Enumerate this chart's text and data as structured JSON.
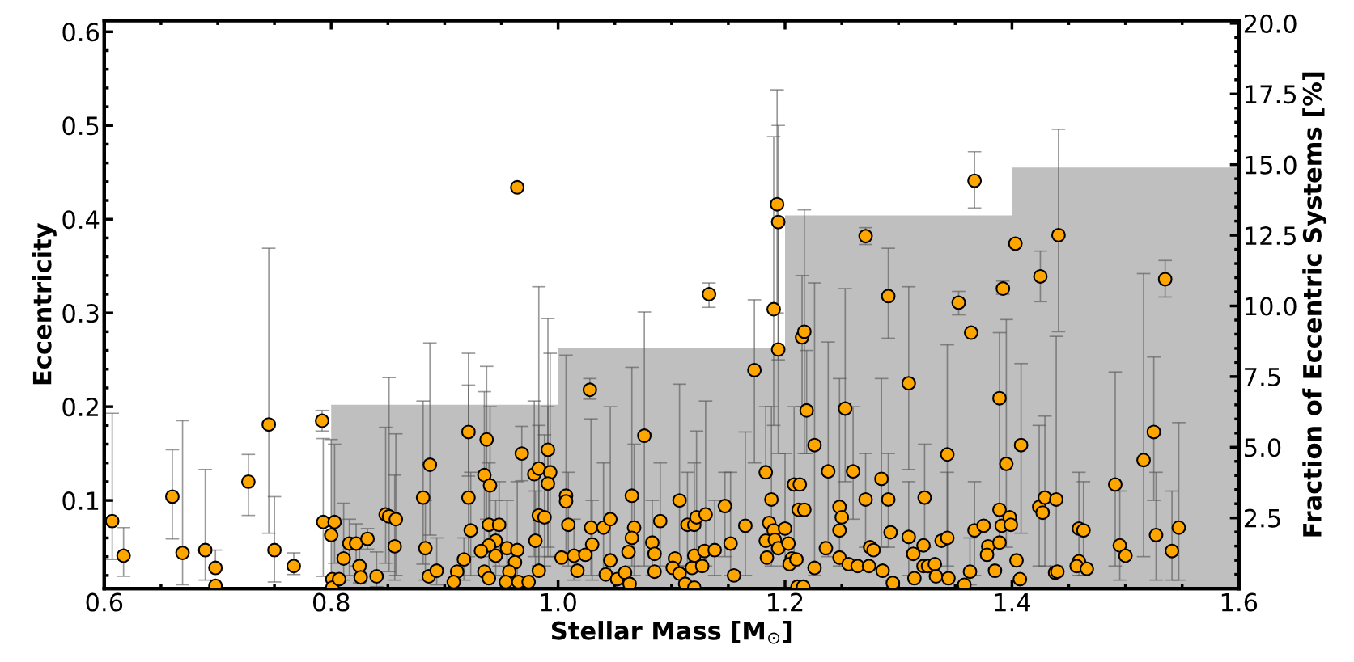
{
  "chart_data": {
    "type": "scatter",
    "xlabel": "Stellar Mass [M$_{⊙}$]",
    "ylabel": "Eccentricity",
    "y2label": "Fraction of Eccentric Systems [%]",
    "xlim": [
      0.6,
      1.6
    ],
    "xticks": [
      0.6,
      0.8,
      {
        "value": 1,
        "label": "1.0"
      },
      1.2,
      1.4,
      1.6
    ],
    "ylim": [
      0.006,
      0.612
    ],
    "yticks": [
      0.1,
      0.2,
      0.3,
      0.4,
      0.5,
      0.6
    ],
    "y2lim": [
      0,
      20.1
    ],
    "y2ticks": [
      2.5,
      {
        "value": 5,
        "label": "5.0"
      },
      7.5,
      {
        "value": 10,
        "label": "10.0"
      },
      12.5,
      {
        "value": 15,
        "label": "15.0"
      },
      17.5,
      {
        "value": 20,
        "label": "20.0"
      }
    ],
    "marker": "circle",
    "series": [
      {
        "type": "histogram",
        "axis": "y2",
        "color": "#bfbfbf",
        "bins": [
          0.6,
          0.8,
          1.0,
          1.2,
          1.4,
          1.6
        ],
        "values": [
          0,
          6.5,
          8.5,
          13.2,
          14.9
        ]
      },
      {
        "color": "#ffa500",
        "x": [
          0.607,
          0.617,
          0.66,
          0.669,
          0.689,
          0.698,
          0.698,
          0.727,
          0.745,
          0.75,
          0.767,
          0.792,
          0.793,
          0.803,
          0.8,
          0.801,
          0.801,
          0.807,
          0.811,
          0.816,
          0.822,
          0.825,
          0.826,
          0.832,
          0.84,
          0.848,
          0.851,
          0.857,
          0.856,
          0.881,
          0.887,
          0.883,
          0.886,
          0.893,
          0.964,
          0.921,
          0.921,
          0.923,
          0.937,
          0.935,
          0.94,
          0.939,
          0.948,
          0.945,
          0.939,
          0.932,
          0.945,
          0.935,
          0.939,
          0.917,
          0.911,
          0.908,
          0.968,
          0.955,
          0.964,
          0.962,
          0.957,
          0.954,
          0.965,
          0.974,
          0.979,
          0.983,
          0.991,
          0.993,
          0.991,
          0.983,
          0.988,
          0.98,
          0.983,
          1.007,
          1.007,
          1.009,
          1.003,
          1.014,
          1.017,
          1.028,
          1.029,
          1.03,
          1.024,
          1.04,
          1.046,
          1.046,
          1.042,
          1.052,
          1.059,
          1.063,
          1.065,
          1.067,
          1.065,
          1.062,
          1.076,
          1.083,
          1.085,
          1.085,
          1.09,
          1.103,
          1.101,
          1.107,
          1.107,
          1.112,
          1.114,
          1.12,
          1.122,
          1.12,
          1.118,
          1.12,
          1.13,
          1.129,
          1.127,
          1.138,
          1.133,
          1.147,
          1.152,
          1.155,
          1.165,
          1.173,
          1.183,
          1.188,
          1.186,
          1.183,
          1.184,
          1.19,
          1.191,
          1.194,
          1.2,
          1.203,
          1.19,
          1.193,
          1.194,
          1.194,
          1.206,
          1.204,
          1.208,
          1.212,
          1.211,
          1.215,
          1.217,
          1.219,
          1.226,
          1.213,
          1.217,
          1.21,
          1.226,
          1.216,
          1.238,
          1.236,
          1.248,
          1.25,
          1.248,
          1.248,
          1.253,
          1.256,
          1.26,
          1.264,
          1.271,
          1.271,
          1.275,
          1.278,
          1.274,
          1.285,
          1.286,
          1.291,
          1.291,
          1.293,
          1.295,
          1.309,
          1.309,
          1.313,
          1.314,
          1.322,
          1.323,
          1.322,
          1.326,
          1.332,
          1.333,
          1.338,
          1.343,
          1.343,
          1.344,
          1.353,
          1.364,
          1.358,
          1.363,
          1.367,
          1.367,
          1.375,
          1.379,
          1.378,
          1.385,
          1.389,
          1.389,
          1.389,
          1.392,
          1.395,
          1.391,
          1.398,
          1.399,
          1.403,
          1.408,
          1.404,
          1.407,
          1.425,
          1.424,
          1.427,
          1.429,
          1.439,
          1.441,
          1.438,
          1.44,
          1.459,
          1.463,
          1.459,
          1.457,
          1.466,
          1.491,
          1.495,
          1.5,
          1.516,
          1.525,
          1.527,
          1.535,
          1.541,
          1.547
        ],
        "values": [
          0.078,
          0.041,
          0.104,
          0.044,
          0.047,
          0.028,
          0.009,
          0.12,
          0.181,
          0.047,
          0.03,
          0.185,
          0.077,
          0.077,
          0.063,
          0.016,
          0.007,
          0.016,
          0.038,
          0.054,
          0.054,
          0.03,
          0.018,
          0.059,
          0.019,
          0.085,
          0.083,
          0.08,
          0.051,
          0.103,
          0.138,
          0.049,
          0.019,
          0.025,
          0.434,
          0.173,
          0.103,
          0.068,
          0.165,
          0.127,
          0.116,
          0.074,
          0.074,
          0.057,
          0.052,
          0.046,
          0.041,
          0.024,
          0.017,
          0.037,
          0.024,
          0.013,
          0.15,
          0.049,
          0.047,
          0.034,
          0.024,
          0.013,
          0.013,
          0.013,
          0.128,
          0.134,
          0.154,
          0.13,
          0.118,
          0.084,
          0.082,
          0.057,
          0.025,
          0.105,
          0.099,
          0.074,
          0.039,
          0.041,
          0.025,
          0.218,
          0.071,
          0.053,
          0.042,
          0.071,
          0.08,
          0.036,
          0.021,
          0.016,
          0.023,
          0.011,
          0.105,
          0.071,
          0.06,
          0.045,
          0.169,
          0.055,
          0.043,
          0.024,
          0.078,
          0.038,
          0.028,
          0.1,
          0.022,
          0.011,
          0.074,
          0.074,
          0.082,
          0.041,
          0.028,
          0.007,
          0.085,
          0.046,
          0.03,
          0.047,
          0.32,
          0.094,
          0.054,
          0.02,
          0.073,
          0.239,
          0.13,
          0.101,
          0.076,
          0.057,
          0.039,
          0.068,
          0.058,
          0.049,
          0.07,
          0.054,
          0.304,
          0.416,
          0.397,
          0.261,
          0.038,
          0.032,
          0.117,
          0.09,
          0.008,
          0.274,
          0.28,
          0.196,
          0.159,
          0.117,
          0.09,
          0.037,
          0.028,
          0.008,
          0.131,
          0.049,
          0.093,
          0.082,
          0.068,
          0.039,
          0.198,
          0.032,
          0.131,
          0.03,
          0.382,
          0.101,
          0.05,
          0.047,
          0.03,
          0.123,
          0.025,
          0.318,
          0.101,
          0.066,
          0.012,
          0.225,
          0.061,
          0.043,
          0.017,
          0.052,
          0.103,
          0.03,
          0.03,
          0.032,
          0.019,
          0.057,
          0.06,
          0.149,
          0.017,
          0.311,
          0.279,
          0.01,
          0.024,
          0.068,
          0.441,
          0.073,
          0.051,
          0.042,
          0.025,
          0.055,
          0.09,
          0.209,
          0.326,
          0.139,
          0.073,
          0.082,
          0.074,
          0.374,
          0.159,
          0.036,
          0.016,
          0.339,
          0.093,
          0.087,
          0.103,
          0.101,
          0.383,
          0.023,
          0.024,
          0.07,
          0.068,
          0.035,
          0.03,
          0.027,
          0.117,
          0.052,
          0.041,
          0.143,
          0.173,
          0.063,
          0.336,
          0.046,
          0.071
        ],
        "errors": [
          [
            0.037,
            0.193
          ],
          [
            0.019,
            0.071
          ],
          [
            0.059,
            0.154
          ],
          [
            0.01,
            0.185
          ],
          [
            0.015,
            0.133
          ],
          [
            0.028,
            0.047
          ],
          null,
          [
            0.084,
            0.149
          ],
          [
            0.065,
            0.369
          ],
          [
            0.013,
            0.104
          ],
          [
            0.021,
            0.044
          ],
          [
            0.174,
            0.196
          ],
          [
            0.019,
            0.166
          ],
          [
            0.033,
            0.16
          ],
          [
            0.015,
            0.165
          ],
          null,
          null,
          null,
          [
            0.015,
            0.097
          ],
          [
            0.02,
            0.08
          ],
          [
            0.03,
            0.075
          ],
          [
            0.012,
            0.06
          ],
          null,
          [
            0.048,
            0.07
          ],
          [
            0.008,
            0.045
          ],
          [
            0.033,
            0.178
          ],
          [
            0.024,
            0.231
          ],
          [
            0.02,
            0.171
          ],
          [
            0.015,
            0.127
          ],
          [
            0.032,
            0.206
          ],
          [
            0.063,
            0.268
          ],
          [
            0.015,
            0.1
          ],
          null,
          [
            0.01,
            0.06
          ],
          null,
          [
            0.126,
            0.257
          ],
          [
            0.04,
            0.223
          ],
          [
            0.02,
            0.13
          ],
          [
            0.08,
            0.243
          ],
          [
            0.05,
            0.216
          ],
          [
            0.04,
            0.2
          ],
          [
            0.02,
            0.14
          ],
          [
            0.03,
            0.12
          ],
          [
            0.02,
            0.1
          ],
          null,
          null,
          null,
          null,
          null,
          [
            0.015,
            0.06
          ],
          null,
          null,
          [
            0.121,
            0.179
          ],
          [
            0.015,
            0.1
          ],
          [
            0.015,
            0.12
          ],
          null,
          null,
          null,
          null,
          null,
          [
            0.04,
            0.206
          ],
          [
            0.03,
            0.328
          ],
          [
            0.05,
            0.294
          ],
          [
            0.04,
            0.257
          ],
          [
            0.04,
            0.2
          ],
          [
            0.03,
            0.18
          ],
          [
            0.03,
            0.17
          ],
          [
            0.02,
            0.11
          ],
          null,
          [
            0.04,
            0.255
          ],
          null,
          [
            0.03,
            0.13
          ],
          null,
          [
            0.015,
            0.08
          ],
          null,
          [
            0.208,
            0.23
          ],
          [
            0.02,
            0.187
          ],
          [
            0.015,
            0.1
          ],
          null,
          [
            0.02,
            0.14
          ],
          [
            0.02,
            0.2
          ],
          null,
          null,
          null,
          null,
          null,
          [
            0.03,
            0.242
          ],
          [
            0.02,
            0.16
          ],
          null,
          null,
          [
            0.03,
            0.301
          ],
          [
            0.02,
            0.1
          ],
          null,
          null,
          [
            0.03,
            0.14
          ],
          null,
          null,
          [
            0.03,
            0.224
          ],
          null,
          null,
          [
            0.03,
            0.13
          ],
          [
            0.03,
            0.14
          ],
          [
            0.03,
            0.174
          ],
          null,
          null,
          null,
          [
            0.03,
            0.206
          ],
          null,
          null,
          [
            0.02,
            0.1
          ],
          [
            0.306,
            0.332
          ],
          [
            0.04,
            0.13
          ],
          [
            0.02,
            0.13
          ],
          null,
          [
            0.02,
            0.173
          ],
          [
            0.14,
            0.314
          ],
          [
            0.13,
            0.2
          ],
          [
            0.03,
            0.2
          ],
          null,
          null,
          null,
          null,
          null,
          null,
          [
            0.03,
            0.15
          ],
          null,
          [
            0.18,
            0.488
          ],
          [
            0.3,
            0.538
          ],
          [
            0.25,
            0.5
          ],
          [
            0.15,
            0.4
          ],
          null,
          null,
          [
            0.04,
            0.2
          ],
          null,
          null,
          [
            0.2,
            0.34
          ],
          [
            0.15,
            0.41
          ],
          [
            0.15,
            0.26
          ],
          [
            0.02,
            0.332
          ],
          null,
          null,
          null,
          null,
          null,
          [
            0.04,
            0.269
          ],
          null,
          [
            0.03,
            0.23
          ],
          null,
          null,
          null,
          [
            0.12,
            0.326
          ],
          null,
          [
            0.08,
            0.2
          ],
          null,
          [
            0.373,
            0.391
          ],
          [
            0.05,
            0.15
          ],
          null,
          null,
          null,
          [
            0.05,
            0.23
          ],
          null,
          [
            0.273,
            0.369
          ],
          [
            0.05,
            0.15
          ],
          null,
          null,
          [
            0.133,
            0.328
          ],
          [
            0.02,
            0.12
          ],
          null,
          null,
          null,
          [
            0.05,
            0.16
          ],
          null,
          null,
          null,
          null,
          null,
          [
            0.02,
            0.13
          ],
          [
            0.03,
            0.266
          ],
          null,
          [
            0.298,
            0.323
          ],
          null,
          null,
          [
            0.01,
            0.06
          ],
          [
            0.02,
            0.12
          ],
          [
            0.412,
            0.472
          ],
          null,
          null,
          null,
          null,
          null,
          null,
          [
            0.06,
            0.279
          ],
          [
            0.32,
            0.334
          ],
          [
            0.05,
            0.293
          ],
          null,
          null,
          null,
          null,
          [
            0.065,
            0.246
          ],
          null,
          null,
          [
            0.312,
            0.366
          ],
          [
            0.03,
            0.18
          ],
          null,
          [
            0.03,
            0.19
          ],
          [
            0.03,
            0.275
          ],
          [
            0.28,
            0.496
          ],
          null,
          null,
          [
            0.02,
            0.13
          ],
          [
            0.02,
            0.12
          ],
          null,
          null,
          null,
          [
            0.03,
            0.237
          ],
          [
            0.015,
            0.11
          ],
          null,
          [
            0.04,
            0.342
          ],
          [
            0.1,
            0.253
          ],
          [
            0.015,
            0.13
          ],
          [
            0.317,
            0.356
          ],
          [
            0.015,
            0.11
          ],
          [
            0.015,
            0.183
          ]
        ]
      }
    ]
  }
}
